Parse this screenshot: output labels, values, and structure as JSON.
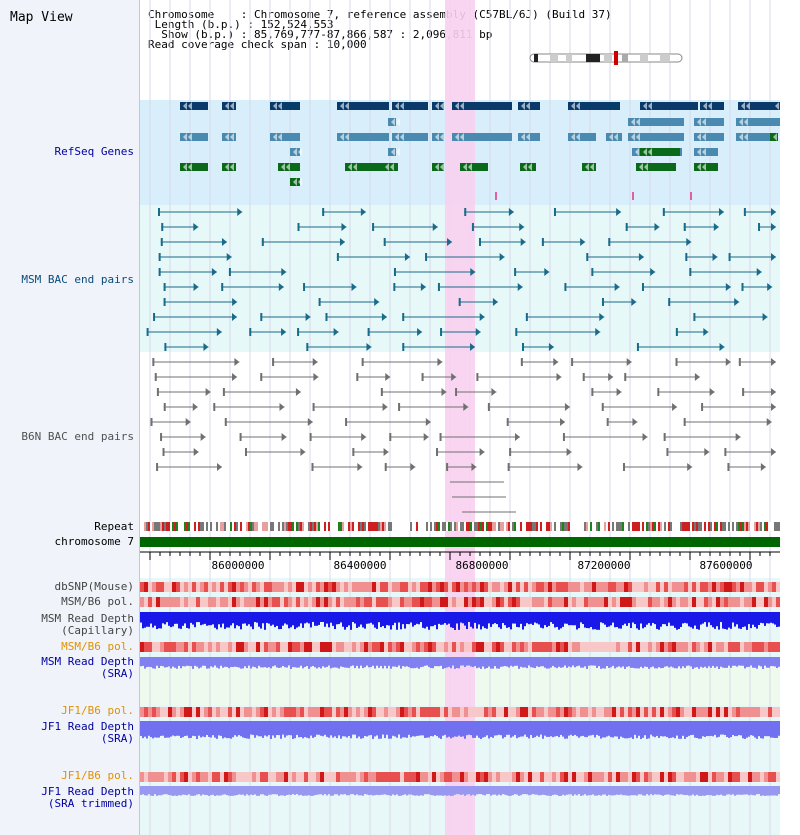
{
  "title": "Map View",
  "header": {
    "chromosome_label": "Chromosome",
    "chromosome_value": "Chromosome 7, reference assembly (C57BL/6J) (Build 37)",
    "length_label": "Length (b.p.)",
    "length_value": "152,524,553",
    "show_label": "Show (b.p.)",
    "show_value": "85,769,777-87,866,587 : 2,096,811 bp",
    "coverage_label": "Read coverage check span",
    "coverage_value": "10,000"
  },
  "tracks": {
    "refseq": "RefSeq Genes",
    "msm_bac": "MSM BAC end pairs",
    "b6n_bac": "B6N BAC end pairs",
    "repeat": "Repeat",
    "chromosome": "chromosome 7",
    "dbsnp": "dbSNP(Mouse)",
    "msm_b6_pol": "MSM/B6 pol.",
    "msm_depth_cap_1": "MSM Read Depth",
    "msm_depth_cap_2": "(Capillary)",
    "msm_b6_pol_2": "MSM/B6 pol.",
    "msm_depth_sra_1": "MSM Read Depth",
    "msm_depth_sra_2": "(SRA)",
    "jf1_b6_pol": "JF1/B6 pol.",
    "jf1_depth_sra_1": "JF1 Read Depth",
    "jf1_depth_sra_2": "(SRA)",
    "jf1_b6_pol_2": "JF1/B6 pol.",
    "jf1_depth_trim_1": "JF1 Read Depth",
    "jf1_depth_trim_2": "(SRA trimmed)"
  },
  "axis": {
    "ticks": [
      "86000000",
      "86400000",
      "86800000",
      "87200000",
      "87600000"
    ]
  },
  "colors": {
    "label_blue": "#0000a0",
    "label_orange": "#e09000",
    "gene_dark": "#0a3a6a",
    "gene_mid": "#4a8ab0",
    "gene_green": "#0a6a1a",
    "highlight": "#f8d0f0"
  }
}
